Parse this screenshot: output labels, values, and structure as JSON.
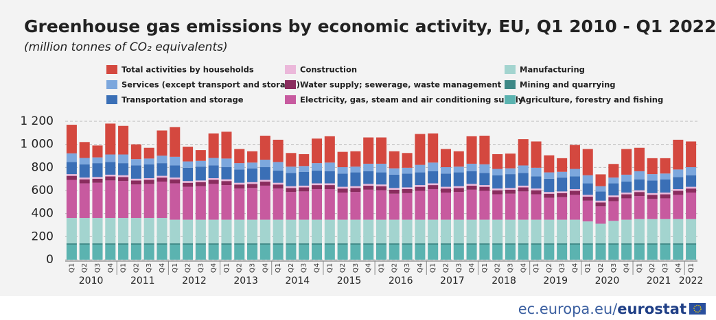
{
  "chart_data": {
    "type": "stacked_bar",
    "title": "Greenhouse gas emissions by economic activity, EU, Q1 2010 -  Q1 2022",
    "subtitle": "(million tonnes of CO₂ equivalents)",
    "categories": [
      "Q1",
      "Q2",
      "Q3",
      "Q4",
      "Q1",
      "Q2",
      "Q3",
      "Q4",
      "Q1",
      "Q2",
      "Q3",
      "Q4",
      "Q1",
      "Q2",
      "Q3",
      "Q4",
      "Q1",
      "Q2",
      "Q3",
      "Q4",
      "Q1",
      "Q2",
      "Q3",
      "Q4",
      "Q1",
      "Q2",
      "Q3",
      "Q4",
      "Q1",
      "Q2",
      "Q3",
      "Q4",
      "Q1",
      "Q2",
      "Q3",
      "Q4",
      "Q1",
      "Q2",
      "Q3",
      "Q4",
      "Q1",
      "Q2",
      "Q3",
      "Q4",
      "Q1",
      "Q2",
      "Q3",
      "Q4",
      "Q1"
    ],
    "years": [
      "2010",
      "2011",
      "2012",
      "2013",
      "2014",
      "2015",
      "2016",
      "2017",
      "2018",
      "2019",
      "2020",
      "2021",
      "2022"
    ],
    "ylim": [
      0,
      1200
    ],
    "yticks": [
      0,
      200,
      400,
      600,
      800,
      {
        "value": 1000,
        "label": "1 000"
      },
      {
        "value": 1200,
        "label": "1 200"
      }
    ],
    "grid": true,
    "series": [
      {
        "name": "Agriculture, forestry and fishing",
        "color": "#5bb3b0",
        "values": [
          130,
          130,
          130,
          130,
          130,
          130,
          130,
          130,
          130,
          130,
          130,
          130,
          130,
          130,
          130,
          130,
          130,
          130,
          130,
          130,
          130,
          130,
          130,
          130,
          130,
          130,
          130,
          130,
          130,
          130,
          130,
          130,
          130,
          130,
          130,
          130,
          130,
          130,
          130,
          130,
          130,
          130,
          130,
          130,
          130,
          130,
          130,
          130,
          130
        ]
      },
      {
        "name": "Mining and quarrying",
        "color": "#3d8886",
        "values": [
          12,
          12,
          12,
          12,
          12,
          12,
          12,
          12,
          12,
          12,
          12,
          12,
          12,
          12,
          12,
          12,
          12,
          12,
          12,
          12,
          12,
          12,
          12,
          12,
          12,
          12,
          12,
          12,
          12,
          12,
          12,
          12,
          12,
          12,
          12,
          12,
          12,
          12,
          12,
          12,
          12,
          12,
          12,
          12,
          12,
          12,
          12,
          12,
          12
        ]
      },
      {
        "name": "Manufacturing",
        "color": "#a3d4cf",
        "values": [
          220,
          220,
          220,
          220,
          220,
          220,
          220,
          220,
          205,
          205,
          205,
          205,
          205,
          205,
          205,
          205,
          205,
          205,
          205,
          205,
          205,
          205,
          205,
          205,
          205,
          205,
          205,
          205,
          205,
          205,
          205,
          205,
          205,
          205,
          205,
          205,
          205,
          205,
          205,
          205,
          190,
          170,
          195,
          205,
          210,
          210,
          210,
          210,
          210
        ]
      },
      {
        "name": "Electricity, gas, steam and air conditioning supply",
        "color": "#c75a9f",
        "values": [
          330,
          300,
          305,
          325,
          320,
          290,
          295,
          315,
          315,
          285,
          290,
          310,
          300,
          270,
          275,
          295,
          270,
          240,
          245,
          265,
          265,
          235,
          240,
          260,
          255,
          225,
          230,
          250,
          265,
          235,
          240,
          260,
          250,
          220,
          225,
          245,
          220,
          190,
          195,
          215,
          180,
          150,
          170,
          185,
          200,
          175,
          180,
          210,
          230
        ]
      },
      {
        "name": "Water supply; sewerage, waste management",
        "color": "#8a2c5e",
        "values": [
          35,
          35,
          35,
          35,
          35,
          35,
          35,
          35,
          35,
          35,
          35,
          35,
          35,
          35,
          35,
          35,
          35,
          35,
          35,
          35,
          35,
          35,
          35,
          35,
          35,
          35,
          35,
          35,
          35,
          35,
          35,
          35,
          35,
          35,
          35,
          35,
          35,
          35,
          35,
          35,
          35,
          35,
          35,
          35,
          35,
          35,
          35,
          35,
          35
        ]
      },
      {
        "name": "Construction",
        "color": "#ebb8da",
        "values": [
          15,
          15,
          15,
          15,
          15,
          15,
          15,
          15,
          15,
          15,
          15,
          15,
          15,
          15,
          15,
          15,
          15,
          15,
          15,
          15,
          15,
          15,
          15,
          15,
          15,
          15,
          15,
          15,
          15,
          15,
          15,
          15,
          15,
          15,
          15,
          15,
          15,
          15,
          15,
          15,
          15,
          15,
          15,
          15,
          15,
          15,
          15,
          15,
          15
        ]
      },
      {
        "name": "Transportation and storage",
        "color": "#3a6fb6",
        "values": [
          105,
          115,
          120,
          110,
          105,
          115,
          120,
          110,
          105,
          115,
          120,
          110,
          105,
          115,
          120,
          110,
          105,
          115,
          120,
          110,
          105,
          115,
          120,
          110,
          105,
          115,
          120,
          110,
          105,
          115,
          120,
          110,
          105,
          115,
          120,
          110,
          105,
          115,
          120,
          110,
          100,
          80,
          105,
          95,
          95,
          110,
          115,
          105,
          100
        ]
      },
      {
        "name": "Services (except transport and storage)",
        "color": "#7ca7dd",
        "values": [
          75,
          55,
          50,
          65,
          75,
          55,
          50,
          65,
          75,
          55,
          50,
          65,
          75,
          55,
          50,
          65,
          75,
          55,
          50,
          65,
          75,
          55,
          50,
          65,
          75,
          55,
          50,
          65,
          75,
          55,
          50,
          65,
          75,
          55,
          50,
          65,
          75,
          55,
          50,
          65,
          70,
          45,
          50,
          60,
          70,
          55,
          50,
          65,
          70
        ]
      },
      {
        "name": "Total activities by households",
        "color": "#d4483f",
        "values": [
          248,
          138,
          103,
          268,
          248,
          128,
          93,
          218,
          258,
          128,
          93,
          213,
          233,
          123,
          98,
          208,
          193,
          118,
          103,
          213,
          228,
          133,
          133,
          228,
          228,
          148,
          128,
          268,
          253,
          158,
          133,
          238,
          248,
          128,
          128,
          228,
          228,
          148,
          118,
          208,
          228,
          103,
          118,
          223,
          203,
          138,
          133,
          258,
          223
        ]
      }
    ],
    "source": {
      "site": "ec.europa.eu/",
      "brand": "eurostat"
    }
  }
}
